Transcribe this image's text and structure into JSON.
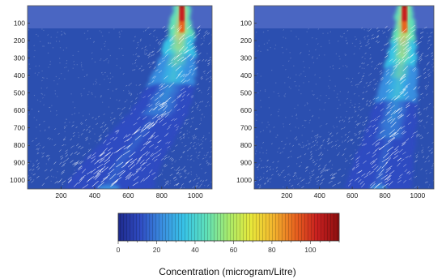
{
  "chart_data": [
    {
      "type": "heatmap",
      "description_colors": "concentration field with white velocity vectors",
      "xticks": [
        200,
        400,
        600,
        800,
        1000
      ],
      "yticks": [
        100,
        200,
        300,
        400,
        500,
        600,
        700,
        800,
        900,
        1000
      ],
      "xlim": [
        0,
        1100
      ],
      "ylim": [
        1050,
        0
      ],
      "plume": {
        "source_x": 920,
        "centerline": [
          [
            920,
            0
          ],
          [
            915,
            150
          ],
          [
            895,
            300
          ],
          [
            860,
            450
          ],
          [
            790,
            600
          ],
          [
            680,
            750
          ],
          [
            560,
            900
          ],
          [
            480,
            1050
          ]
        ],
        "peak_concentration": 110
      }
    },
    {
      "type": "heatmap",
      "xticks": [
        200,
        400,
        600,
        800,
        1000
      ],
      "yticks": [
        100,
        200,
        300,
        400,
        500,
        600,
        700,
        800,
        900,
        1000
      ],
      "xlim": [
        0,
        1100
      ],
      "ylim": [
        1050,
        0
      ],
      "plume": {
        "source_x": 920,
        "centerline": [
          [
            920,
            0
          ],
          [
            918,
            150
          ],
          [
            905,
            300
          ],
          [
            885,
            450
          ],
          [
            860,
            600
          ],
          [
            830,
            750
          ],
          [
            790,
            900
          ],
          [
            760,
            1050
          ]
        ],
        "peak_concentration": 110
      }
    }
  ],
  "colorbar": {
    "label": "Concentration (microgram/Litre)",
    "ticks": [
      0,
      20,
      40,
      60,
      80,
      100
    ],
    "min": 0,
    "max": 115,
    "colormap": [
      "#1e2a8c",
      "#2f4bc2",
      "#3a8fe0",
      "#38c4e6",
      "#5fe0b8",
      "#a8ea6a",
      "#e8e83a",
      "#f2b62e",
      "#e8641f",
      "#c81f1f",
      "#8c1010"
    ]
  },
  "colors": {
    "background_field": "#2b4fb0",
    "top_band": "#4a66c2",
    "vectors": "#ffffff"
  }
}
